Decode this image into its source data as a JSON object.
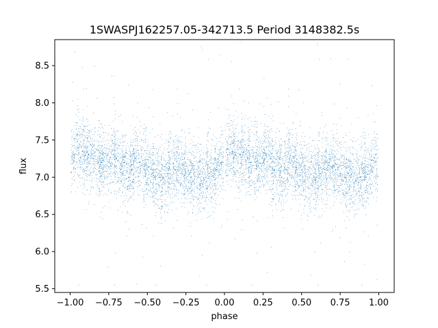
{
  "chart_data": {
    "type": "scatter",
    "title": "1SWASPJ162257.05-342713.5 Period 3148382.5s",
    "xlabel": "phase",
    "ylabel": "flux",
    "xlim": [
      -1.1,
      1.1
    ],
    "ylim": [
      5.45,
      8.85
    ],
    "x_ticks": [
      -1.0,
      -0.75,
      -0.5,
      -0.25,
      0.0,
      0.25,
      0.5,
      0.75,
      1.0
    ],
    "x_tick_labels": [
      "−1.00",
      "−0.75",
      "−0.50",
      "−0.25",
      "0.00",
      "0.25",
      "0.50",
      "0.75",
      "1.00"
    ],
    "y_ticks": [
      5.5,
      6.0,
      6.5,
      7.0,
      7.5,
      8.0,
      8.5
    ],
    "y_tick_labels": [
      "5.5",
      "6.0",
      "6.5",
      "7.0",
      "7.5",
      "8.0",
      "8.5"
    ],
    "grid": false,
    "legend": "none",
    "point_color": "#1f77b4",
    "series": [
      {
        "points_description": "dense phase-folded light curve, mirrored across phase -1..1",
        "x": [
          -0.98,
          -0.95,
          -0.92,
          -0.9,
          -0.88,
          -0.85,
          -0.82,
          -0.8,
          -0.78,
          -0.75,
          -0.72,
          -0.7,
          -0.67,
          -0.65,
          -0.62,
          -0.6,
          -0.58,
          -0.55,
          -0.52,
          -0.5,
          -0.47,
          -0.45,
          -0.42,
          -0.4,
          -0.37,
          -0.35,
          -0.32,
          -0.3,
          -0.27,
          -0.25,
          -0.22,
          -0.2,
          -0.17,
          -0.15,
          -0.12,
          -0.1,
          -0.07,
          -0.05,
          -0.02,
          0.02,
          0.05,
          0.07,
          0.1,
          0.12,
          0.15,
          0.17,
          0.2,
          0.22,
          0.25,
          0.27,
          0.3,
          0.32,
          0.35,
          0.37,
          0.4,
          0.42,
          0.45,
          0.47,
          0.5,
          0.52,
          0.55,
          0.58,
          0.6,
          0.62,
          0.65,
          0.67,
          0.7,
          0.72,
          0.75,
          0.78,
          0.8,
          0.82,
          0.85,
          0.88,
          0.9,
          0.92,
          0.95,
          0.98
        ],
        "y": [
          7.3,
          7.4,
          7.35,
          7.3,
          7.3,
          7.25,
          7.2,
          7.2,
          7.15,
          7.2,
          7.3,
          7.25,
          7.1,
          7.2,
          7.0,
          7.1,
          7.25,
          7.2,
          7.1,
          7.1,
          7.05,
          7.0,
          7.0,
          7.0,
          7.05,
          7.1,
          7.1,
          7.15,
          7.1,
          7.05,
          7.0,
          7.05,
          7.0,
          6.95,
          7.0,
          7.05,
          7.0,
          7.1,
          7.2,
          7.3,
          7.35,
          7.3,
          7.3,
          7.3,
          7.25,
          7.2,
          7.2,
          7.15,
          7.2,
          7.3,
          7.25,
          7.1,
          7.2,
          7.0,
          7.1,
          7.25,
          7.2,
          7.1,
          7.1,
          7.05,
          7.0,
          7.0,
          7.0,
          7.05,
          7.1,
          7.1,
          7.15,
          7.1,
          7.05,
          7.0,
          7.05,
          7.0,
          6.95,
          7.0,
          7.05,
          7.0,
          7.1,
          7.2
        ]
      }
    ]
  }
}
